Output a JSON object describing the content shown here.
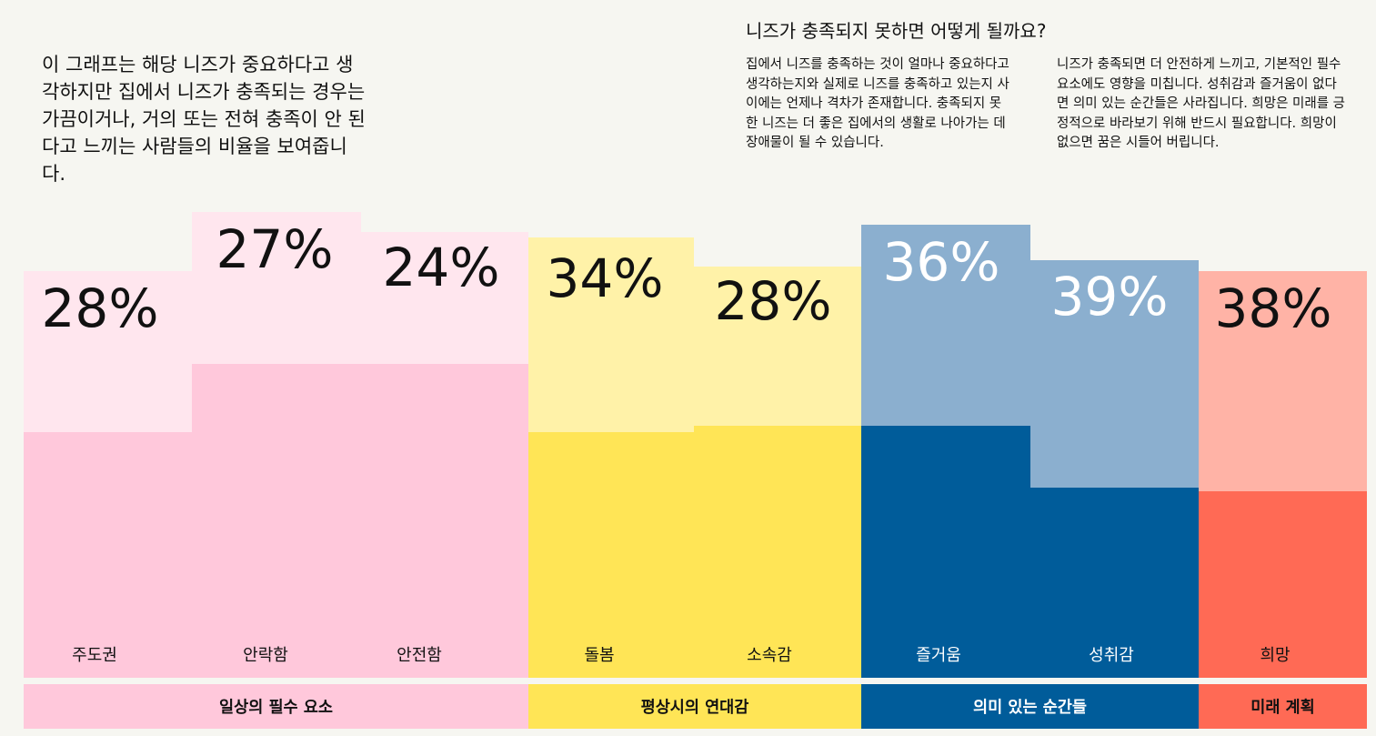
{
  "intro": "이 그래프는 해당 니즈가 중요하다고 생각하지만 집에서 니즈가 충족되는 경우는 가끔이거나, 거의 또는 전혀 충족이 안 된다고 느끼는 사람들의 비율을 보여줍니다.",
  "side": {
    "heading": "니즈가 충족되지 못하면 어떻게 될까요?",
    "para1": "집에서 니즈를 충족하는 것이 얼마나 중요하다고 생각하는지와 실제로 니즈를 충족하고 있는지 사이에는 언제나 격차가 존재합니다. 충족되지 못한 니즈는 더 좋은 집에서의 생활로 나아가는 데 장애물이 될 수 있습니다.",
    "para2": "니즈가 충족되면 더 안전하게 느끼고, 기본적인 필수 요소에도 영향을 미칩니다. 성취감과 즐거움이 없다면 의미 있는 순간들은 사라집니다. 희망은 미래를 긍정적으로 바라보기 위해 반드시 필요합니다. 희망이 없으면 꿈은 시들어 버립니다."
  },
  "chart_data": {
    "type": "bar",
    "unit": "%",
    "categories": [
      "주도권",
      "안락함",
      "안전함",
      "돌봄",
      "소속감",
      "즐거움",
      "성취감",
      "희망"
    ],
    "values": [
      28,
      27,
      24,
      34,
      28,
      36,
      39,
      38
    ],
    "groups": [
      {
        "name": "일상의 필수 요소",
        "categories": [
          "주도권",
          "안락함",
          "안전함"
        ],
        "light": "#ffe6ee",
        "dark": "#ffc8db",
        "text": "#111111"
      },
      {
        "name": "평상시의 연대감",
        "categories": [
          "돌봄",
          "소속감"
        ],
        "light": "#fff2a8",
        "dark": "#ffe556",
        "text": "#111111"
      },
      {
        "name": "의미 있는 순간들",
        "categories": [
          "즐거움",
          "성취감"
        ],
        "light": "#8bafcf",
        "dark": "#005c9a",
        "text": "#ffffff"
      },
      {
        "name": "미래 계획",
        "categories": [
          "희망"
        ],
        "light": "#ffb3a6",
        "dark": "#ff6a55",
        "text": "#111111"
      }
    ]
  }
}
